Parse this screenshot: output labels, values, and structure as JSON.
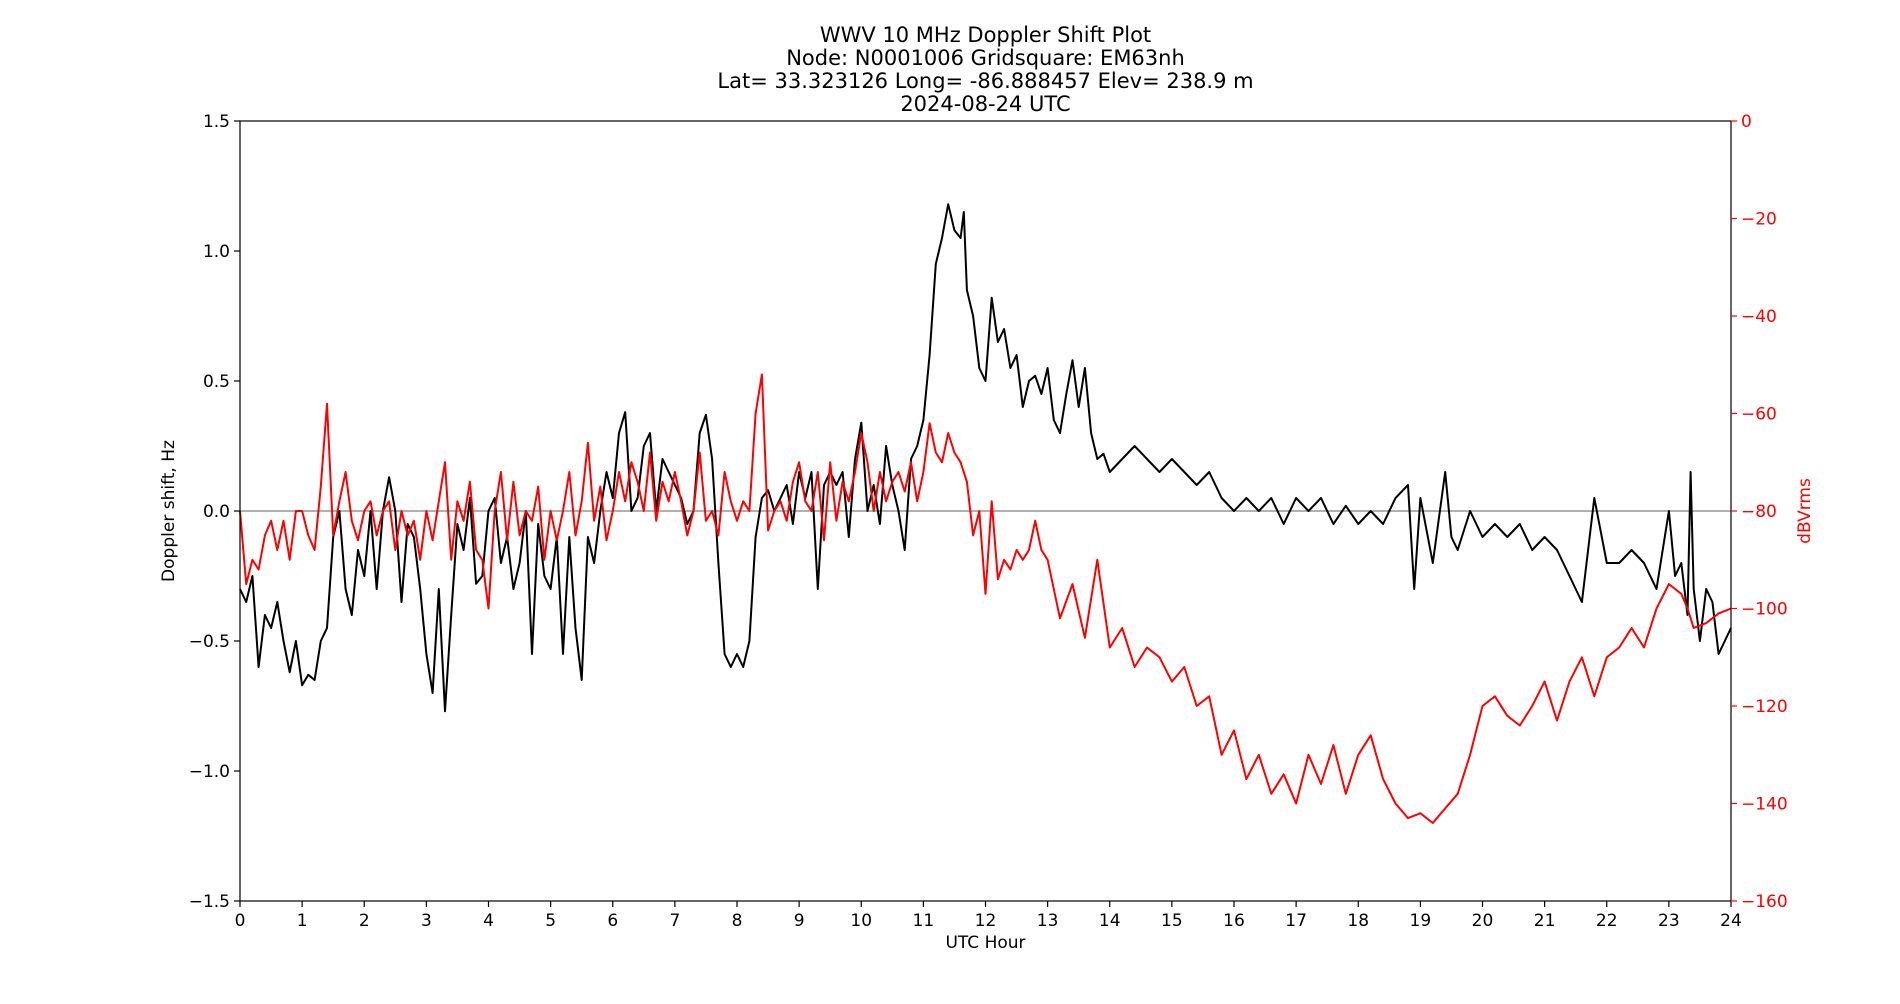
{
  "chart_data": {
    "type": "line",
    "title_lines": [
      "WWV 10 MHz Doppler Shift Plot",
      "Node:  N0001006     Gridsquare:  EM63nh",
      "Lat= 33.323126    Long= -86.888457    Elev= 238.9 m",
      "2024-08-24  UTC"
    ],
    "xlabel": "UTC Hour",
    "ylabel_left": "Doppler shift, Hz",
    "ylabel_right": "dBVrms",
    "xlim": [
      0,
      24
    ],
    "ylim_left": [
      -1.5,
      1.5
    ],
    "ylim_right": [
      -160,
      0
    ],
    "x_ticks": [
      "0",
      "1",
      "2",
      "3",
      "4",
      "5",
      "6",
      "7",
      "8",
      "9",
      "10",
      "11",
      "12",
      "13",
      "14",
      "15",
      "16",
      "17",
      "18",
      "19",
      "20",
      "21",
      "22",
      "23",
      "24"
    ],
    "y_ticks_left": [
      "1.5",
      "1.0",
      "0.5",
      "0.0",
      "−0.5",
      "−1.0",
      "−1.5"
    ],
    "y_ticks_right": [
      "0",
      "−20",
      "−40",
      "−60",
      "−80",
      "−100",
      "−120",
      "−140",
      "−160"
    ],
    "zero_line": 0.0,
    "colors": {
      "doppler": "#000000",
      "power": "#ff0000",
      "zero_line": "#808080",
      "right_axis": "#ff0000"
    },
    "series": [
      {
        "axis": "left",
        "color": "#000000",
        "x": [
          0,
          0.1,
          0.2,
          0.3,
          0.4,
          0.5,
          0.6,
          0.7,
          0.8,
          0.9,
          1.0,
          1.1,
          1.2,
          1.3,
          1.4,
          1.5,
          1.6,
          1.7,
          1.8,
          1.9,
          2.0,
          2.1,
          2.2,
          2.3,
          2.4,
          2.5,
          2.6,
          2.7,
          2.8,
          2.9,
          3.0,
          3.1,
          3.2,
          3.3,
          3.4,
          3.5,
          3.6,
          3.7,
          3.8,
          3.9,
          4.0,
          4.1,
          4.2,
          4.3,
          4.4,
          4.5,
          4.6,
          4.7,
          4.8,
          4.9,
          5.0,
          5.1,
          5.2,
          5.3,
          5.4,
          5.5,
          5.6,
          5.7,
          5.8,
          5.9,
          6.0,
          6.1,
          6.2,
          6.3,
          6.4,
          6.5,
          6.6,
          6.7,
          6.8,
          6.9,
          7.0,
          7.1,
          7.2,
          7.3,
          7.4,
          7.5,
          7.6,
          7.7,
          7.8,
          7.9,
          8.0,
          8.1,
          8.2,
          8.3,
          8.4,
          8.5,
          8.6,
          8.7,
          8.8,
          8.9,
          9.0,
          9.1,
          9.2,
          9.3,
          9.4,
          9.5,
          9.6,
          9.7,
          9.8,
          9.9,
          10.0,
          10.1,
          10.2,
          10.3,
          10.4,
          10.5,
          10.6,
          10.7,
          10.8,
          10.9,
          11.0,
          11.1,
          11.2,
          11.3,
          11.4,
          11.5,
          11.6,
          11.65,
          11.7,
          11.8,
          11.9,
          12.0,
          12.1,
          12.2,
          12.3,
          12.4,
          12.5,
          12.6,
          12.7,
          12.8,
          12.9,
          13.0,
          13.1,
          13.2,
          13.3,
          13.4,
          13.5,
          13.6,
          13.7,
          13.8,
          13.9,
          14.0,
          14.2,
          14.4,
          14.6,
          14.8,
          15.0,
          15.2,
          15.4,
          15.6,
          15.8,
          16.0,
          16.2,
          16.4,
          16.6,
          16.8,
          17.0,
          17.2,
          17.4,
          17.6,
          17.8,
          18.0,
          18.2,
          18.4,
          18.6,
          18.8,
          18.9,
          19.0,
          19.2,
          19.4,
          19.5,
          19.6,
          19.8,
          20.0,
          20.2,
          20.4,
          20.6,
          20.8,
          21.0,
          21.2,
          21.4,
          21.6,
          21.8,
          22.0,
          22.2,
          22.4,
          22.6,
          22.8,
          23.0,
          23.1,
          23.2,
          23.3,
          23.35,
          23.4,
          23.5,
          23.6,
          23.7,
          23.8,
          23.9,
          24.0
        ],
        "y": [
          -0.3,
          -0.35,
          -0.25,
          -0.6,
          -0.4,
          -0.45,
          -0.35,
          -0.5,
          -0.62,
          -0.5,
          -0.67,
          -0.63,
          -0.65,
          -0.5,
          -0.45,
          -0.1,
          0.0,
          -0.3,
          -0.4,
          -0.15,
          -0.25,
          0.0,
          -0.3,
          0.0,
          0.13,
          0.0,
          -0.35,
          -0.05,
          -0.1,
          -0.3,
          -0.55,
          -0.7,
          -0.3,
          -0.77,
          -0.4,
          -0.05,
          -0.15,
          0.05,
          -0.28,
          -0.25,
          0.0,
          0.05,
          -0.2,
          -0.1,
          -0.3,
          -0.2,
          0.0,
          -0.55,
          -0.05,
          -0.25,
          -0.3,
          -0.1,
          -0.55,
          -0.1,
          -0.45,
          -0.65,
          -0.1,
          -0.2,
          0.0,
          0.15,
          0.05,
          0.3,
          0.38,
          0.0,
          0.05,
          0.25,
          0.3,
          0.0,
          0.2,
          0.15,
          0.1,
          0.05,
          -0.05,
          0.0,
          0.3,
          0.37,
          0.2,
          -0.2,
          -0.55,
          -0.6,
          -0.55,
          -0.6,
          -0.5,
          -0.1,
          0.05,
          0.08,
          0.0,
          0.05,
          0.1,
          -0.05,
          0.15,
          0.05,
          0.15,
          -0.3,
          0.1,
          0.15,
          0.1,
          0.15,
          -0.1,
          0.2,
          0.34,
          0.0,
          0.1,
          -0.05,
          0.25,
          0.1,
          0.0,
          -0.15,
          0.2,
          0.25,
          0.35,
          0.6,
          0.95,
          1.05,
          1.18,
          1.08,
          1.05,
          1.15,
          0.85,
          0.75,
          0.55,
          0.5,
          0.82,
          0.65,
          0.7,
          0.55,
          0.6,
          0.4,
          0.5,
          0.52,
          0.45,
          0.55,
          0.35,
          0.3,
          0.45,
          0.58,
          0.4,
          0.55,
          0.3,
          0.2,
          0.22,
          0.15,
          0.2,
          0.25,
          0.2,
          0.15,
          0.2,
          0.15,
          0.1,
          0.15,
          0.05,
          0.0,
          0.05,
          0.0,
          0.05,
          -0.05,
          0.05,
          0.0,
          0.05,
          -0.05,
          0.02,
          -0.05,
          0.0,
          -0.05,
          0.05,
          0.1,
          -0.3,
          0.05,
          -0.2,
          0.15,
          -0.1,
          -0.15,
          0.0,
          -0.1,
          -0.05,
          -0.1,
          -0.05,
          -0.15,
          -0.1,
          -0.15,
          -0.25,
          -0.35,
          0.05,
          -0.2,
          -0.2,
          -0.15,
          -0.2,
          -0.3,
          0.0,
          -0.25,
          -0.2,
          -0.4,
          0.15,
          -0.3,
          -0.5,
          -0.3,
          -0.35,
          -0.55,
          -0.5,
          -0.45
        ]
      },
      {
        "axis": "right",
        "color": "#ff0000",
        "x": [
          0,
          0.1,
          0.2,
          0.3,
          0.4,
          0.5,
          0.6,
          0.7,
          0.8,
          0.9,
          1.0,
          1.1,
          1.2,
          1.3,
          1.4,
          1.5,
          1.6,
          1.7,
          1.8,
          1.9,
          2.0,
          2.1,
          2.2,
          2.3,
          2.4,
          2.5,
          2.6,
          2.7,
          2.8,
          2.9,
          3.0,
          3.1,
          3.2,
          3.3,
          3.4,
          3.5,
          3.6,
          3.7,
          3.8,
          3.9,
          4.0,
          4.1,
          4.2,
          4.3,
          4.4,
          4.5,
          4.6,
          4.7,
          4.8,
          4.9,
          5.0,
          5.1,
          5.2,
          5.3,
          5.4,
          5.5,
          5.6,
          5.7,
          5.8,
          5.9,
          6.0,
          6.1,
          6.2,
          6.3,
          6.4,
          6.5,
          6.6,
          6.7,
          6.8,
          6.9,
          7.0,
          7.1,
          7.2,
          7.3,
          7.4,
          7.5,
          7.6,
          7.7,
          7.8,
          7.9,
          8.0,
          8.1,
          8.2,
          8.3,
          8.4,
          8.5,
          8.6,
          8.7,
          8.8,
          8.9,
          9.0,
          9.1,
          9.2,
          9.3,
          9.4,
          9.5,
          9.6,
          9.7,
          9.8,
          9.9,
          10.0,
          10.1,
          10.2,
          10.3,
          10.4,
          10.5,
          10.6,
          10.7,
          10.8,
          10.9,
          11.0,
          11.1,
          11.2,
          11.3,
          11.4,
          11.5,
          11.6,
          11.7,
          11.8,
          11.9,
          12.0,
          12.1,
          12.2,
          12.3,
          12.4,
          12.5,
          12.6,
          12.7,
          12.8,
          12.9,
          13.0,
          13.2,
          13.4,
          13.6,
          13.8,
          14.0,
          14.2,
          14.4,
          14.6,
          14.8,
          15.0,
          15.2,
          15.4,
          15.6,
          15.8,
          16.0,
          16.2,
          16.4,
          16.6,
          16.8,
          17.0,
          17.2,
          17.4,
          17.6,
          17.8,
          18.0,
          18.2,
          18.4,
          18.6,
          18.8,
          19.0,
          19.2,
          19.4,
          19.6,
          19.8,
          20.0,
          20.2,
          20.4,
          20.6,
          20.8,
          21.0,
          21.2,
          21.4,
          21.6,
          21.8,
          22.0,
          22.2,
          22.4,
          22.6,
          22.8,
          23.0,
          23.2,
          23.3,
          23.4,
          23.6,
          23.8,
          24.0
        ],
        "y": [
          -80,
          -95,
          -90,
          -92,
          -85,
          -82,
          -88,
          -82,
          -90,
          -80,
          -80,
          -85,
          -88,
          -75,
          -58,
          -85,
          -78,
          -72,
          -82,
          -86,
          -80,
          -78,
          -85,
          -80,
          -78,
          -88,
          -80,
          -85,
          -82,
          -90,
          -80,
          -86,
          -78,
          -70,
          -90,
          -78,
          -82,
          -74,
          -88,
          -90,
          -100,
          -80,
          -72,
          -86,
          -74,
          -85,
          -80,
          -82,
          -75,
          -90,
          -80,
          -86,
          -80,
          -72,
          -85,
          -78,
          -66,
          -82,
          -75,
          -86,
          -80,
          -72,
          -78,
          -70,
          -74,
          -80,
          -68,
          -82,
          -74,
          -78,
          -72,
          -78,
          -85,
          -80,
          -68,
          -82,
          -80,
          -85,
          -72,
          -78,
          -82,
          -78,
          -80,
          -60,
          -52,
          -84,
          -80,
          -78,
          -82,
          -74,
          -70,
          -78,
          -80,
          -72,
          -86,
          -70,
          -82,
          -74,
          -78,
          -72,
          -64,
          -70,
          -80,
          -72,
          -78,
          -74,
          -72,
          -76,
          -70,
          -78,
          -72,
          -62,
          -68,
          -70,
          -64,
          -68,
          -70,
          -74,
          -85,
          -80,
          -97,
          -78,
          -94,
          -90,
          -92,
          -88,
          -90,
          -88,
          -82,
          -88,
          -90,
          -102,
          -95,
          -106,
          -90,
          -108,
          -104,
          -112,
          -108,
          -110,
          -115,
          -112,
          -120,
          -118,
          -130,
          -125,
          -135,
          -130,
          -138,
          -134,
          -140,
          -130,
          -136,
          -128,
          -138,
          -130,
          -126,
          -135,
          -140,
          -143,
          -142,
          -144,
          -141,
          -138,
          -130,
          -120,
          -118,
          -122,
          -124,
          -120,
          -115,
          -123,
          -115,
          -110,
          -118,
          -110,
          -108,
          -104,
          -108,
          -100,
          -95,
          -97,
          -100,
          -104,
          -103,
          -101,
          -100
        ]
      }
    ]
  }
}
